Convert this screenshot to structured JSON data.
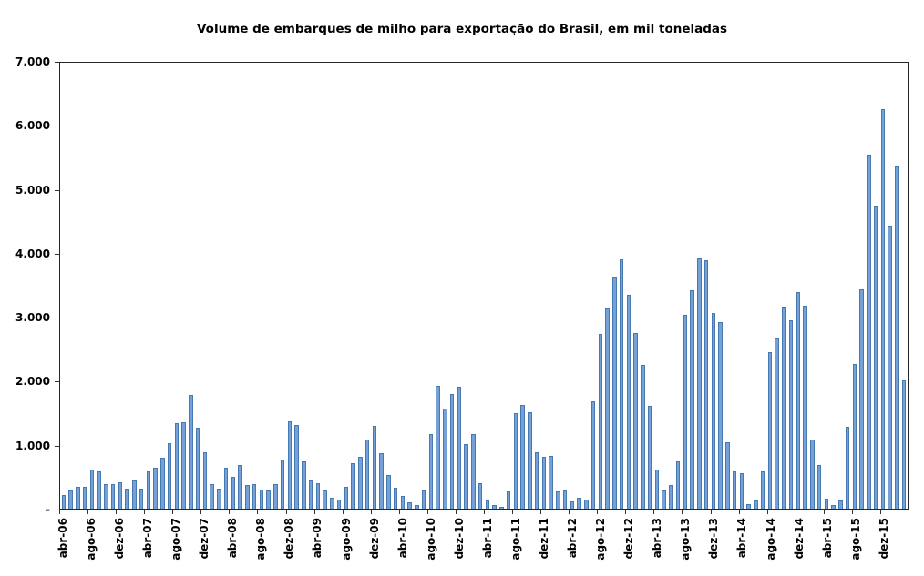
{
  "chart_data": {
    "type": "bar",
    "title": "Volume de embarques de milho para exportação do Brasil, em mil toneladas",
    "unit": "mil toneladas",
    "grid": false,
    "legend": false,
    "ylim": [
      0,
      7000
    ],
    "bar_color": "#74a1d8",
    "bar_border_color": "#4678b2",
    "axis_color": "#262626",
    "categories": [
      "abr-06",
      "mai-06",
      "jun-06",
      "jul-06",
      "ago-06",
      "set-06",
      "out-06",
      "nov-06",
      "dez-06",
      "jan-07",
      "fev-07",
      "mar-07",
      "abr-07",
      "mai-07",
      "jun-07",
      "jul-07",
      "ago-07",
      "set-07",
      "out-07",
      "nov-07",
      "dez-07",
      "jan-08",
      "fev-08",
      "mar-08",
      "abr-08",
      "mai-08",
      "jun-08",
      "jul-08",
      "ago-08",
      "set-08",
      "out-08",
      "nov-08",
      "dez-08",
      "jan-09",
      "fev-09",
      "mar-09",
      "abr-09",
      "mai-09",
      "jun-09",
      "jul-09",
      "ago-09",
      "set-09",
      "out-09",
      "nov-09",
      "dez-09",
      "jan-10",
      "fev-10",
      "mar-10",
      "abr-10",
      "mai-10",
      "jun-10",
      "jul-10",
      "ago-10",
      "set-10",
      "out-10",
      "nov-10",
      "dez-10",
      "jan-11",
      "fev-11",
      "mar-11",
      "abr-11",
      "mai-11",
      "jun-11",
      "jul-11",
      "ago-11",
      "set-11",
      "out-11",
      "nov-11",
      "dez-11",
      "jan-12",
      "fev-12",
      "mar-12",
      "abr-12",
      "mai-12",
      "jun-12",
      "jul-12",
      "ago-12",
      "set-12",
      "out-12",
      "nov-12",
      "dez-12",
      "jan-13",
      "fev-13",
      "mar-13",
      "abr-13",
      "mai-13",
      "jun-13",
      "jul-13",
      "ago-13",
      "set-13",
      "out-13",
      "nov-13",
      "dez-13",
      "jan-14",
      "fev-14",
      "mar-14",
      "abr-14",
      "mai-14",
      "jun-14",
      "jul-14",
      "ago-14",
      "set-14",
      "out-14",
      "nov-14",
      "dez-14",
      "jan-15",
      "fev-15",
      "mar-15",
      "abr-15",
      "mai-15",
      "jun-15",
      "jul-15",
      "ago-15",
      "set-15",
      "out-15",
      "nov-15",
      "dez-15",
      "jan-16",
      "fev-16",
      "mar-16"
    ],
    "values": [
      210,
      290,
      345,
      340,
      615,
      590,
      390,
      380,
      420,
      310,
      450,
      320,
      590,
      645,
      800,
      1030,
      1340,
      1355,
      1790,
      1265,
      885,
      390,
      320,
      645,
      505,
      690,
      365,
      380,
      295,
      280,
      390,
      770,
      1365,
      1310,
      740,
      445,
      395,
      285,
      170,
      145,
      350,
      715,
      815,
      1080,
      1300,
      865,
      535,
      330,
      200,
      95,
      60,
      280,
      1175,
      1925,
      1570,
      1800,
      1920,
      1020,
      1175,
      400,
      130,
      60,
      35,
      270,
      1505,
      1630,
      1510,
      885,
      810,
      830,
      270,
      285,
      115,
      165,
      145,
      1690,
      2750,
      3140,
      3650,
      3920,
      3360,
      2760,
      2260,
      1610,
      610,
      290,
      365,
      740,
      3040,
      3430,
      3930,
      3900,
      3070,
      2930,
      1050,
      580,
      560,
      75,
      130,
      590,
      2460,
      2690,
      3170,
      2960,
      3400,
      3180,
      1090,
      680,
      160,
      60,
      135,
      1285,
      2270,
      3440,
      5560,
      4760,
      6270,
      4450,
      5380,
      2010
    ],
    "xtick_labels": [
      "abr-06",
      "ago-06",
      "dez-06",
      "abr-07",
      "ago-07",
      "dez-07",
      "abr-08",
      "ago-08",
      "dez-08",
      "abr-09",
      "ago-09",
      "dez-09",
      "abr-10",
      "ago-10",
      "dez-10",
      "abr-11",
      "ago-11",
      "dez-11",
      "abr-12",
      "ago-12",
      "dez-12",
      "abr-13",
      "ago-13",
      "dez-13",
      "abr-14",
      "ago-14",
      "dez-14",
      "abr-15",
      "ago-15",
      "dez-15"
    ],
    "xtick_every": 4,
    "yticks": [
      {
        "value": 7000,
        "label": "7.000"
      },
      {
        "value": 6000,
        "label": "6.000"
      },
      {
        "value": 5000,
        "label": "5.000"
      },
      {
        "value": 4000,
        "label": "4.000"
      },
      {
        "value": 3000,
        "label": "3.000"
      },
      {
        "value": 2000,
        "label": "2.000"
      },
      {
        "value": 1000,
        "label": "1.000"
      },
      {
        "value": 0,
        "label": "-"
      }
    ]
  }
}
